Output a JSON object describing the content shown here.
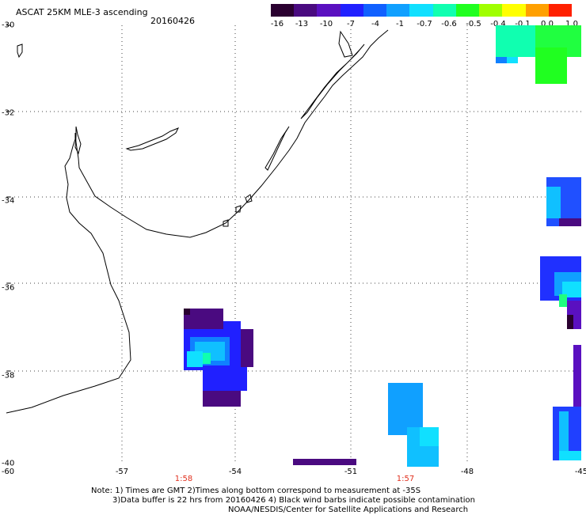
{
  "header": {
    "title": "ASCAT 25KM MLE-3 ascending",
    "date": "20160426"
  },
  "colorbar": {
    "labels": [
      "-16",
      "-13",
      "-10",
      "-7",
      "-4",
      "-1",
      "-0.7",
      "-0.6",
      "-0.5",
      "-0.4",
      "-0.1",
      "0.0",
      "1.0"
    ],
    "colors": [
      "#2a0030",
      "#4a0a80",
      "#5a10c0",
      "#2020ff",
      "#1060ff",
      "#10a0ff",
      "#10e0ff",
      "#10ffb0",
      "#20ff20",
      "#a0ff00",
      "#ffff00",
      "#ffa000",
      "#ff2000"
    ]
  },
  "axes": {
    "lat_labels": [
      "-30",
      "-32",
      "-34",
      "-36",
      "-38",
      "-40"
    ],
    "lon_labels": [
      "-60",
      "-57",
      "-54",
      "-51",
      "-48",
      "-45"
    ]
  },
  "pass_times": [
    {
      "label": "1:58",
      "lon": -55.4
    },
    {
      "label": "1:57",
      "lon": -49.6
    }
  ],
  "notes": {
    "line1": "Note: 1) Times are GMT 2)Times along bottom correspond to measurement at -35S",
    "line2": "3)Data buffer is 22 hrs from 20160426 4) Black wind barbs indicate possible contamination",
    "line3": "NOAA/NESDIS/Center for Satellite Applications and Research"
  }
}
